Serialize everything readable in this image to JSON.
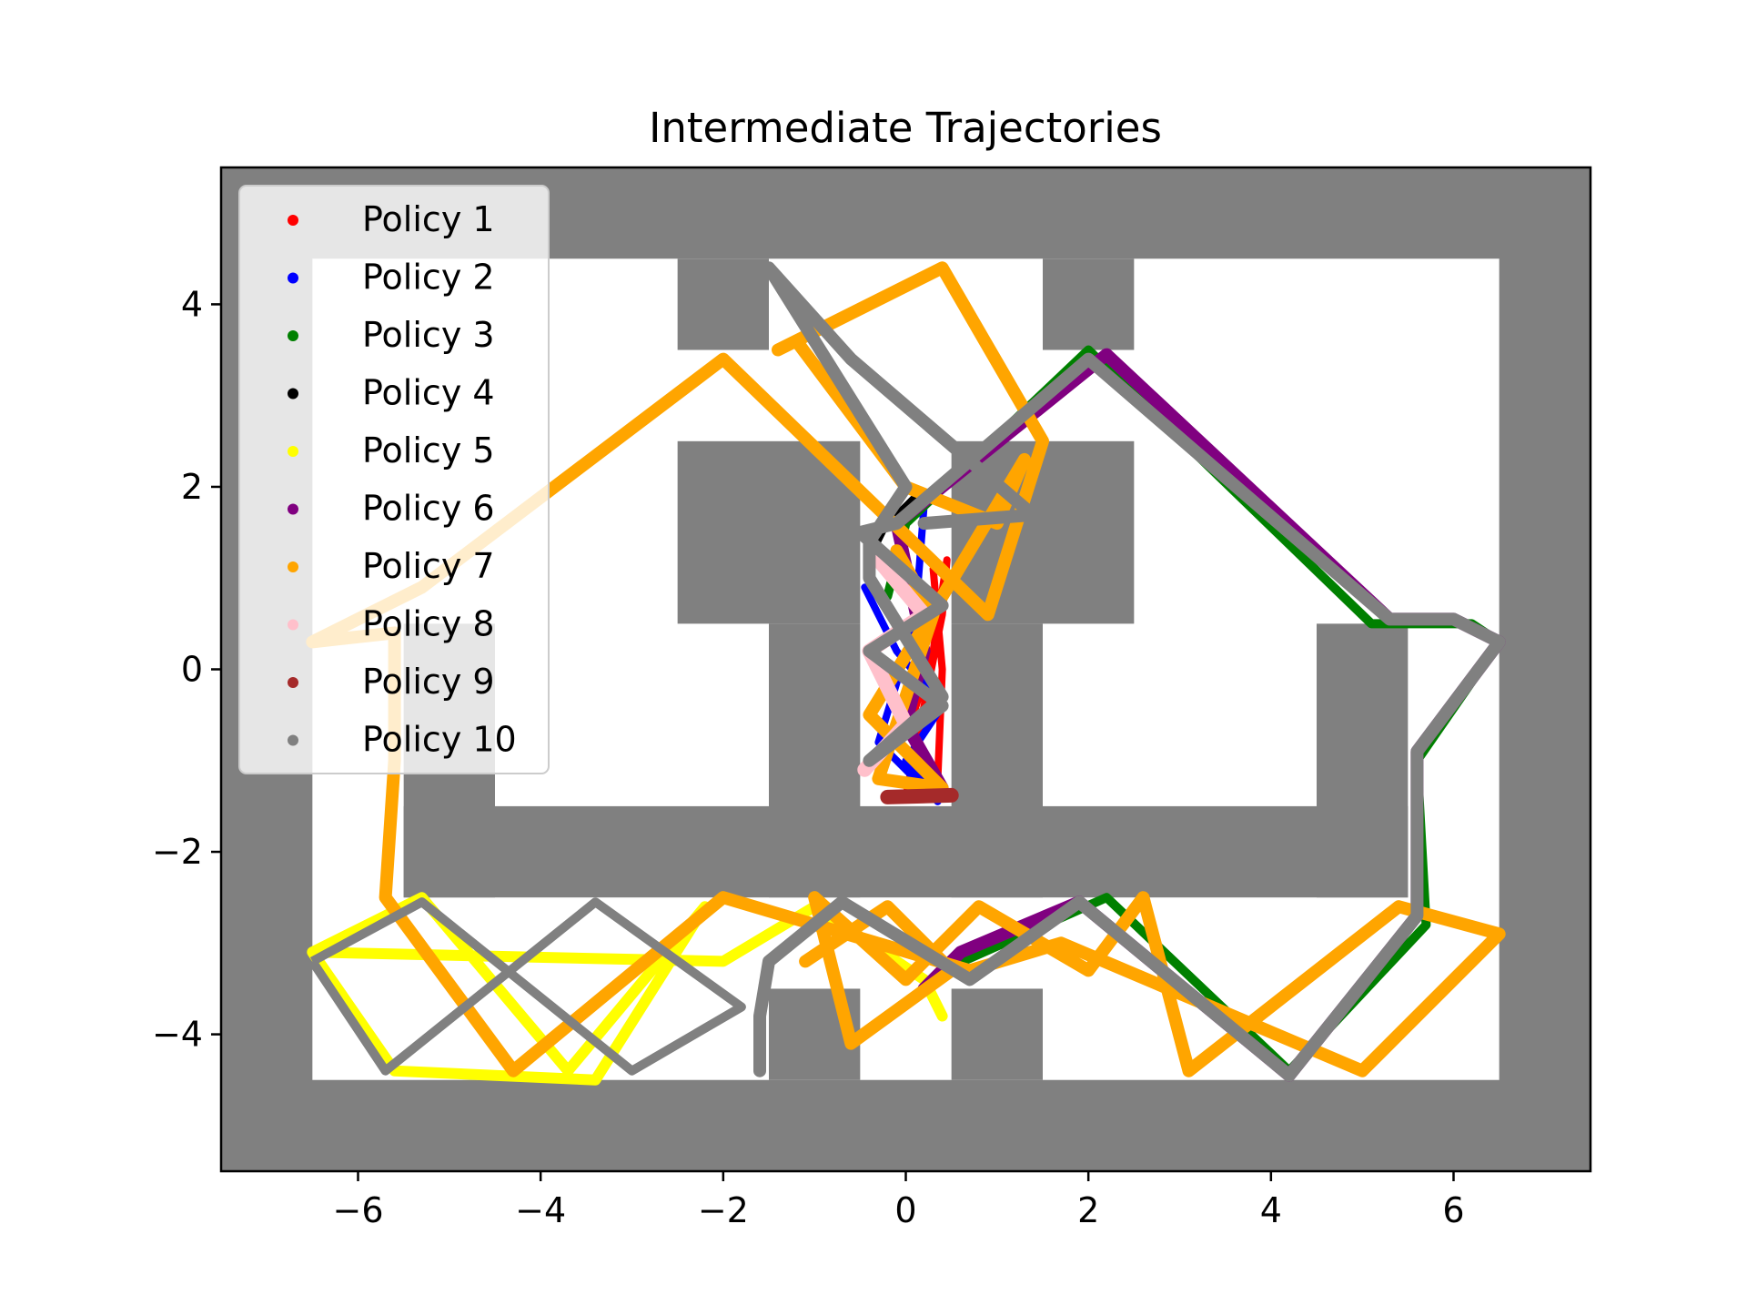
{
  "chart_data": {
    "type": "scatter",
    "title": "Intermediate Trajectories",
    "xlabel": "",
    "ylabel": "",
    "xlim": [
      -7.5,
      7.5
    ],
    "ylim": [
      -5.5,
      5.5
    ],
    "x_ticks": [
      -6,
      -4,
      -2,
      0,
      2,
      4,
      6
    ],
    "y_ticks": [
      -4,
      -2,
      0,
      2,
      4
    ],
    "x_tick_labels": [
      "−6",
      "−4",
      "−2",
      "0",
      "2",
      "4",
      "6"
    ],
    "y_tick_labels": [
      "−4",
      "−2",
      "0",
      "2",
      "4"
    ],
    "grid": false,
    "legend_position": "upper-left",
    "background_color": "#808080",
    "free_space_color": "#ffffff",
    "free_space_regions": [
      {
        "x0": -6.5,
        "x1": 6.5,
        "y0": -4.5,
        "y1": 4.5
      }
    ],
    "obstacles": [
      {
        "x0": -2.5,
        "x1": -1.5,
        "y0": 3.5,
        "y1": 4.5
      },
      {
        "x0": 1.5,
        "x1": 2.5,
        "y0": 3.5,
        "y1": 4.5
      },
      {
        "x0": -2.5,
        "x1": -0.5,
        "y0": 0.5,
        "y1": 2.5
      },
      {
        "x0": 0.5,
        "x1": 2.5,
        "y0": 0.5,
        "y1": 2.5
      },
      {
        "x0": -5.5,
        "x1": -4.5,
        "y0": -2.5,
        "y1": 0.5
      },
      {
        "x0": 4.5,
        "x1": 5.5,
        "y0": -2.5,
        "y1": 0.5
      },
      {
        "x0": -1.5,
        "x1": -0.5,
        "y0": -2.5,
        "y1": 0.5
      },
      {
        "x0": 0.5,
        "x1": 1.5,
        "y0": -2.5,
        "y1": 0.5
      },
      {
        "x0": -5.5,
        "x1": 5.5,
        "y0": -2.5,
        "y1": -1.5
      },
      {
        "x0": -1.5,
        "x1": -0.5,
        "y0": -4.5,
        "y1": -3.5
      },
      {
        "x0": 0.5,
        "x1": 1.5,
        "y0": -4.5,
        "y1": -3.5
      }
    ],
    "series": [
      {
        "name": "Policy 1",
        "color": "#ff0000",
        "stroke_width": 8,
        "points": [
          [
            0,
            -1.4
          ],
          [
            0.2,
            -0.4
          ],
          [
            0.4,
            0.6
          ],
          [
            0.45,
            1.2
          ],
          [
            0.3,
            0.2
          ],
          [
            0.05,
            -0.6
          ],
          [
            0.35,
            -1.2
          ],
          [
            0.4,
            0.0
          ],
          [
            0.3,
            1.1
          ]
        ]
      },
      {
        "name": "Policy 2",
        "color": "#0000ff",
        "stroke_width": 8,
        "points": [
          [
            -0.45,
            0.9
          ],
          [
            -0.1,
            0.2
          ],
          [
            0.4,
            -0.4
          ],
          [
            0,
            -1.0
          ],
          [
            0.35,
            -1.45
          ],
          [
            -0.3,
            -0.8
          ],
          [
            0.1,
            0.5
          ],
          [
            0.2,
            1.8
          ]
        ]
      },
      {
        "name": "Policy 3",
        "color": "#008000",
        "stroke_width": 10,
        "points": [
          [
            0.1,
            -3.6
          ],
          [
            0.4,
            -3.3
          ],
          [
            2.2,
            -2.5
          ],
          [
            4.2,
            -4.4
          ],
          [
            5.7,
            -2.8
          ],
          [
            5.6,
            -1.0
          ],
          [
            6.5,
            0.3
          ],
          [
            6.2,
            0.5
          ],
          [
            5.1,
            0.5
          ],
          [
            2.0,
            3.5
          ],
          [
            0.0,
            1.6
          ],
          [
            -0.2,
            0.8
          ]
        ]
      },
      {
        "name": "Policy 4",
        "color": "#000000",
        "stroke_width": 6,
        "points": [
          [
            -0.4,
            1.2
          ],
          [
            -0.2,
            1.6
          ],
          [
            0.1,
            1.9
          ]
        ]
      },
      {
        "name": "Policy 5",
        "color": "#ffff00",
        "stroke_width": 12,
        "points": [
          [
            -6.5,
            -3.1
          ],
          [
            -5.3,
            -2.5
          ],
          [
            -3.7,
            -4.4
          ],
          [
            -2.2,
            -2.6
          ],
          [
            -3.4,
            -4.5
          ],
          [
            -5.6,
            -4.4
          ],
          [
            -6.5,
            -3.1
          ],
          [
            -2.0,
            -3.2
          ],
          [
            -1.0,
            -2.6
          ],
          [
            0.2,
            -3.4
          ],
          [
            0.4,
            -3.8
          ]
        ]
      },
      {
        "name": "Policy 6",
        "color": "#800080",
        "stroke_width": 14,
        "points": [
          [
            0.2,
            -3.5
          ],
          [
            0.6,
            -3.1
          ],
          [
            1.9,
            -2.55
          ],
          [
            4.2,
            -4.45
          ],
          [
            5.6,
            -2.7
          ],
          [
            5.6,
            -1.6
          ],
          [
            5.6,
            -0.9
          ],
          [
            6.5,
            0.3
          ],
          [
            6.0,
            0.55
          ],
          [
            5.3,
            0.55
          ],
          [
            2.2,
            3.45
          ],
          [
            -0.1,
            1.6
          ],
          [
            0.2,
            0.2
          ],
          [
            0.0,
            -0.6
          ],
          [
            0.4,
            -1.3
          ]
        ]
      },
      {
        "name": "Policy 7",
        "color": "#ffa500",
        "stroke_width": 14,
        "points": [
          [
            -1.1,
            -3.2
          ],
          [
            -0.2,
            -2.6
          ],
          [
            0.5,
            -3.3
          ],
          [
            -0.6,
            -4.1
          ],
          [
            -1.0,
            -2.5
          ],
          [
            0,
            -3.4
          ],
          [
            0.8,
            -2.6
          ],
          [
            2.0,
            -3.3
          ],
          [
            2.6,
            -2.5
          ],
          [
            3.1,
            -4.4
          ],
          [
            5.4,
            -2.6
          ],
          [
            6.5,
            -2.9
          ],
          [
            5.0,
            -4.4
          ],
          [
            1.7,
            -3.0
          ],
          [
            0.7,
            -3.3
          ],
          [
            -2.0,
            -2.5
          ],
          [
            -4.3,
            -4.4
          ],
          [
            -5.7,
            -2.5
          ],
          [
            -5.6,
            -1.0
          ],
          [
            -5.6,
            0.4
          ],
          [
            -6.5,
            0.3
          ],
          [
            -5.3,
            0.9
          ],
          [
            -2.0,
            3.4
          ],
          [
            0.9,
            0.6
          ],
          [
            1.5,
            2.5
          ],
          [
            0.4,
            4.4
          ],
          [
            -1.4,
            3.5
          ],
          [
            -1.2,
            3.6
          ],
          [
            0.0,
            2.0
          ],
          [
            1.0,
            1.6
          ],
          [
            1.3,
            2.3
          ],
          [
            0.4,
            0.8
          ],
          [
            -0.4,
            -0.5
          ],
          [
            0.4,
            -1.3
          ],
          [
            -0.3,
            -1.2
          ],
          [
            0.3,
            0.6
          ],
          [
            -0.1,
            1.3
          ]
        ]
      },
      {
        "name": "Policy 8",
        "color": "#ffc0cb",
        "stroke_width": 16,
        "points": [
          [
            -0.45,
            -1.1
          ],
          [
            0.0,
            -0.6
          ],
          [
            -0.4,
            0.2
          ],
          [
            0.2,
            0.6
          ],
          [
            -0.3,
            1.2
          ]
        ]
      },
      {
        "name": "Policy 9",
        "color": "#a52a2a",
        "stroke_width": 16,
        "points": [
          [
            -0.2,
            -1.4
          ],
          [
            0.5,
            -1.38
          ]
        ]
      },
      {
        "name": "Policy 10",
        "color": "#808080",
        "stroke_width": 14,
        "points": [
          [
            -1.6,
            -4.4
          ],
          [
            -1.6,
            -3.8
          ],
          [
            -1.5,
            -3.2
          ],
          [
            -0.7,
            -2.55
          ],
          [
            0.7,
            -3.4
          ],
          [
            1.9,
            -2.55
          ],
          [
            4.2,
            -4.45
          ],
          [
            5.6,
            -2.7
          ],
          [
            5.6,
            -1.6
          ],
          [
            5.6,
            -0.9
          ],
          [
            6.5,
            0.3
          ],
          [
            6.0,
            0.55
          ],
          [
            5.3,
            0.55
          ],
          [
            2.0,
            3.4
          ],
          [
            -0.1,
            1.6
          ],
          [
            -0.5,
            1.5
          ],
          [
            0.4,
            0.7
          ],
          [
            -0.4,
            0.2
          ],
          [
            0.4,
            -0.4
          ],
          [
            -0.4,
            -1.0
          ],
          [
            0.4,
            -0.3
          ],
          [
            -0.4,
            1.0
          ],
          [
            -0.4,
            1.4
          ],
          [
            0.0,
            2.0
          ],
          [
            -1.5,
            4.4
          ],
          [
            -0.6,
            3.4
          ],
          [
            1.5,
            1.6
          ],
          [
            1.5,
            1.7
          ],
          [
            0.2,
            1.6
          ]
        ]
      }
    ],
    "extra_gray_path": [
      [
        -6.5,
        -3.2
      ],
      [
        -5.3,
        -2.55
      ],
      [
        -3.0,
        -4.4
      ],
      [
        -1.8,
        -3.7
      ],
      [
        -3.4,
        -2.55
      ],
      [
        -5.7,
        -4.4
      ],
      [
        -6.5,
        -3.2
      ]
    ]
  }
}
